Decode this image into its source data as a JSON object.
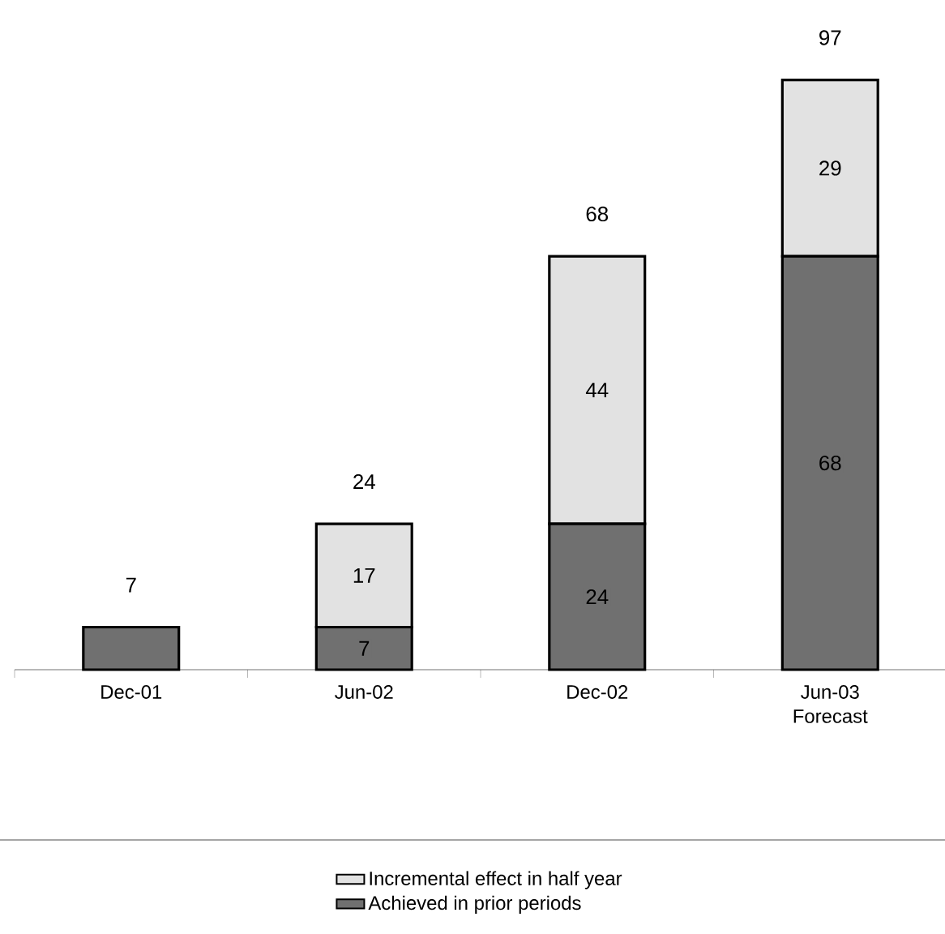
{
  "chart_data": {
    "type": "bar",
    "stacked": true,
    "categories": [
      "Dec-01",
      "Jun-02",
      "Dec-02",
      "Jun-03 Forecast"
    ],
    "series": [
      {
        "name": "Achieved in prior periods",
        "color": "#707070",
        "values": [
          7,
          7,
          24,
          68
        ],
        "value_labels": [
          null,
          "7",
          "24",
          "68"
        ]
      },
      {
        "name": "Incremental effect in half year",
        "color": "#e2e2e2",
        "values": [
          null,
          17,
          44,
          29
        ],
        "value_labels": [
          null,
          "17",
          "44",
          "29"
        ]
      }
    ],
    "totals": [
      "7",
      "24",
      "68",
      "97"
    ],
    "legend": "bottom"
  }
}
